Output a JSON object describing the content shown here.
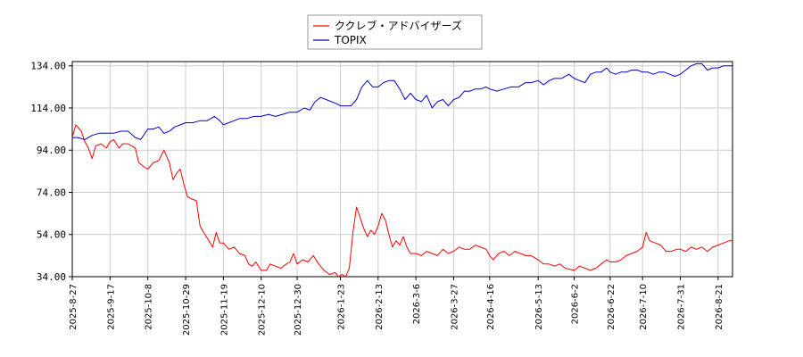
{
  "chart_data": {
    "type": "line",
    "title": "",
    "xlabel": "",
    "ylabel": "",
    "ylim": [
      34,
      136
    ],
    "yticks": [
      34.0,
      54.0,
      74.0,
      94.0,
      114.0,
      134.0
    ],
    "yticklabels": [
      "34.00",
      "54.00",
      "74.00",
      "94.00",
      "114.00",
      "134.00"
    ],
    "x_start": "2025-8-27",
    "x_end": "2026-8-29",
    "xticks": [
      "2025-8-27",
      "2025-9-17",
      "2025-10-8",
      "2025-10-29",
      "2025-11-19",
      "2025-12-10",
      "2025-12-30",
      "2026-1-23",
      "2026-2-13",
      "2026-3-6",
      "2026-3-27",
      "2026-4-16",
      "2026-5-13",
      "2026-6-2",
      "2026-6-22",
      "2026-7-10",
      "2026-7-31",
      "2026-8-21"
    ],
    "grid": true,
    "legend_position": "top-center",
    "series": [
      {
        "name": "ククレブ・アドバイザーズ",
        "color": "#ff0000",
        "points": [
          [
            "2025-8-27",
            100
          ],
          [
            "2025-8-29",
            106
          ],
          [
            "2025-9-1",
            103
          ],
          [
            "2025-9-3",
            98
          ],
          [
            "2025-9-5",
            95
          ],
          [
            "2025-9-7",
            90
          ],
          [
            "2025-9-9",
            96
          ],
          [
            "2025-9-12",
            97
          ],
          [
            "2025-9-15",
            95
          ],
          [
            "2025-9-17",
            98
          ],
          [
            "2025-9-19",
            99
          ],
          [
            "2025-9-22",
            95
          ],
          [
            "2025-9-24",
            97
          ],
          [
            "2025-9-27",
            97
          ],
          [
            "2025-10-1",
            95
          ],
          [
            "2025-10-3",
            88
          ],
          [
            "2025-10-6",
            86
          ],
          [
            "2025-10-8",
            85
          ],
          [
            "2025-10-11",
            88
          ],
          [
            "2025-10-14",
            89
          ],
          [
            "2025-10-17",
            94
          ],
          [
            "2025-10-20",
            88
          ],
          [
            "2025-10-22",
            80
          ],
          [
            "2025-10-24",
            83
          ],
          [
            "2025-10-26",
            85
          ],
          [
            "2025-10-28",
            78
          ],
          [
            "2025-10-30",
            72
          ],
          [
            "2025-11-1",
            71
          ],
          [
            "2025-11-4",
            70
          ],
          [
            "2025-11-6",
            58
          ],
          [
            "2025-11-8",
            55
          ],
          [
            "2025-11-11",
            51
          ],
          [
            "2025-11-13",
            48
          ],
          [
            "2025-11-15",
            55
          ],
          [
            "2025-11-17",
            50
          ],
          [
            "2025-11-19",
            50
          ],
          [
            "2025-11-22",
            47
          ],
          [
            "2025-11-25",
            48
          ],
          [
            "2025-11-28",
            45
          ],
          [
            "2025-12-1",
            44
          ],
          [
            "2025-12-3",
            40
          ],
          [
            "2025-12-5",
            39
          ],
          [
            "2025-12-7",
            41
          ],
          [
            "2025-12-10",
            37
          ],
          [
            "2025-12-13",
            37
          ],
          [
            "2025-12-15",
            40
          ],
          [
            "2025-12-18",
            39
          ],
          [
            "2025-12-21",
            38
          ],
          [
            "2025-12-24",
            40
          ],
          [
            "2025-12-26",
            41
          ],
          [
            "2025-12-28",
            45
          ],
          [
            "2025-12-30",
            40
          ],
          [
            "2026-1-2",
            42
          ],
          [
            "2026-1-5",
            41
          ],
          [
            "2026-1-8",
            44
          ],
          [
            "2026-1-11",
            40
          ],
          [
            "2026-1-14",
            37
          ],
          [
            "2026-1-17",
            35
          ],
          [
            "2026-1-20",
            36
          ],
          [
            "2026-1-22",
            34
          ],
          [
            "2026-1-24",
            35
          ],
          [
            "2026-1-26",
            34
          ],
          [
            "2026-1-28",
            38
          ],
          [
            "2026-1-30",
            55
          ],
          [
            "2026-2-1",
            67
          ],
          [
            "2026-2-3",
            62
          ],
          [
            "2026-2-5",
            57
          ],
          [
            "2026-2-7",
            53
          ],
          [
            "2026-2-9",
            56
          ],
          [
            "2026-2-11",
            54
          ],
          [
            "2026-2-13",
            58
          ],
          [
            "2026-2-15",
            64
          ],
          [
            "2026-2-17",
            61
          ],
          [
            "2026-2-19",
            54
          ],
          [
            "2026-2-21",
            48
          ],
          [
            "2026-2-23",
            51
          ],
          [
            "2026-2-25",
            49
          ],
          [
            "2026-2-27",
            53
          ],
          [
            "2026-3-1",
            48
          ],
          [
            "2026-3-3",
            45
          ],
          [
            "2026-3-6",
            45
          ],
          [
            "2026-3-9",
            44
          ],
          [
            "2026-3-12",
            46
          ],
          [
            "2026-3-15",
            45
          ],
          [
            "2026-3-18",
            44
          ],
          [
            "2026-3-21",
            47
          ],
          [
            "2026-3-24",
            45
          ],
          [
            "2026-3-27",
            46
          ],
          [
            "2026-3-30",
            48
          ],
          [
            "2026-4-2",
            47
          ],
          [
            "2026-4-5",
            47
          ],
          [
            "2026-4-8",
            49
          ],
          [
            "2026-4-11",
            48
          ],
          [
            "2026-4-14",
            47
          ],
          [
            "2026-4-16",
            44
          ],
          [
            "2026-4-18",
            42
          ],
          [
            "2026-4-21",
            45
          ],
          [
            "2026-4-24",
            46
          ],
          [
            "2026-4-27",
            44
          ],
          [
            "2026-4-30",
            46
          ],
          [
            "2026-5-3",
            45
          ],
          [
            "2026-5-6",
            44
          ],
          [
            "2026-5-9",
            44
          ],
          [
            "2026-5-13",
            42
          ],
          [
            "2026-5-16",
            40
          ],
          [
            "2026-5-19",
            40
          ],
          [
            "2026-5-22",
            39
          ],
          [
            "2026-5-25",
            40
          ],
          [
            "2026-5-28",
            38
          ],
          [
            "2026-6-2",
            37
          ],
          [
            "2026-6-5",
            39
          ],
          [
            "2026-6-8",
            38
          ],
          [
            "2026-6-11",
            37
          ],
          [
            "2026-6-14",
            38
          ],
          [
            "2026-6-17",
            40
          ],
          [
            "2026-6-20",
            42
          ],
          [
            "2026-6-22",
            41
          ],
          [
            "2026-6-25",
            41
          ],
          [
            "2026-6-28",
            42
          ],
          [
            "2026-7-1",
            44
          ],
          [
            "2026-7-4",
            45
          ],
          [
            "2026-7-7",
            46
          ],
          [
            "2026-7-10",
            48
          ],
          [
            "2026-7-12",
            55
          ],
          [
            "2026-7-14",
            51
          ],
          [
            "2026-7-17",
            50
          ],
          [
            "2026-7-20",
            49
          ],
          [
            "2026-7-23",
            46
          ],
          [
            "2026-7-26",
            46
          ],
          [
            "2026-7-29",
            47
          ],
          [
            "2026-7-31",
            47
          ],
          [
            "2026-8-3",
            46
          ],
          [
            "2026-8-6",
            48
          ],
          [
            "2026-8-9",
            47
          ],
          [
            "2026-8-12",
            48
          ],
          [
            "2026-8-15",
            46
          ],
          [
            "2026-8-18",
            48
          ],
          [
            "2026-8-21",
            49
          ],
          [
            "2026-8-24",
            50
          ],
          [
            "2026-8-27",
            51
          ],
          [
            "2026-8-29",
            51
          ]
        ]
      },
      {
        "name": "TOPIX",
        "color": "#0000cc",
        "points": [
          [
            "2025-8-27",
            100
          ],
          [
            "2025-8-30",
            100
          ],
          [
            "2025-9-3",
            99
          ],
          [
            "2025-9-7",
            101
          ],
          [
            "2025-9-11",
            102
          ],
          [
            "2025-9-15",
            102
          ],
          [
            "2025-9-19",
            102
          ],
          [
            "2025-9-23",
            103
          ],
          [
            "2025-9-27",
            103
          ],
          [
            "2025-10-1",
            100
          ],
          [
            "2025-10-4",
            99
          ],
          [
            "2025-10-8",
            104
          ],
          [
            "2025-10-11",
            104
          ],
          [
            "2025-10-14",
            105
          ],
          [
            "2025-10-17",
            102
          ],
          [
            "2025-10-20",
            103
          ],
          [
            "2025-10-23",
            105
          ],
          [
            "2025-10-26",
            106
          ],
          [
            "2025-10-29",
            107
          ],
          [
            "2025-11-2",
            107
          ],
          [
            "2025-11-6",
            108
          ],
          [
            "2025-11-10",
            108
          ],
          [
            "2025-11-14",
            110
          ],
          [
            "2025-11-17",
            108
          ],
          [
            "2025-11-19",
            106
          ],
          [
            "2025-11-22",
            107
          ],
          [
            "2025-11-25",
            108
          ],
          [
            "2025-11-28",
            109
          ],
          [
            "2025-12-2",
            109
          ],
          [
            "2025-12-6",
            110
          ],
          [
            "2025-12-10",
            110
          ],
          [
            "2025-12-14",
            111
          ],
          [
            "2025-12-18",
            110
          ],
          [
            "2025-12-22",
            111
          ],
          [
            "2025-12-26",
            112
          ],
          [
            "2025-12-30",
            112
          ],
          [
            "2026-1-3",
            114
          ],
          [
            "2026-1-6",
            113
          ],
          [
            "2026-1-9",
            117
          ],
          [
            "2026-1-12",
            119
          ],
          [
            "2026-1-15",
            118
          ],
          [
            "2026-1-18",
            117
          ],
          [
            "2026-1-21",
            116
          ],
          [
            "2026-1-23",
            115
          ],
          [
            "2026-1-26",
            115
          ],
          [
            "2026-1-29",
            115
          ],
          [
            "2026-2-1",
            118
          ],
          [
            "2026-2-4",
            124
          ],
          [
            "2026-2-7",
            127
          ],
          [
            "2026-2-10",
            124
          ],
          [
            "2026-2-13",
            124
          ],
          [
            "2026-2-16",
            126
          ],
          [
            "2026-2-19",
            127
          ],
          [
            "2026-2-22",
            127
          ],
          [
            "2026-2-25",
            123
          ],
          [
            "2026-2-28",
            118
          ],
          [
            "2026-3-3",
            121
          ],
          [
            "2026-3-6",
            118
          ],
          [
            "2026-3-9",
            117
          ],
          [
            "2026-3-12",
            120
          ],
          [
            "2026-3-15",
            114
          ],
          [
            "2026-3-18",
            117
          ],
          [
            "2026-3-21",
            118
          ],
          [
            "2026-3-24",
            115
          ],
          [
            "2026-3-27",
            118
          ],
          [
            "2026-3-30",
            119
          ],
          [
            "2026-4-2",
            122
          ],
          [
            "2026-4-5",
            122
          ],
          [
            "2026-4-8",
            123
          ],
          [
            "2026-4-11",
            123
          ],
          [
            "2026-4-14",
            124
          ],
          [
            "2026-4-16",
            123
          ],
          [
            "2026-4-20",
            122
          ],
          [
            "2026-4-24",
            123
          ],
          [
            "2026-4-28",
            124
          ],
          [
            "2026-5-2",
            124
          ],
          [
            "2026-5-6",
            126
          ],
          [
            "2026-5-9",
            126
          ],
          [
            "2026-5-13",
            127
          ],
          [
            "2026-5-16",
            125
          ],
          [
            "2026-5-19",
            127
          ],
          [
            "2026-5-22",
            128
          ],
          [
            "2026-5-26",
            128
          ],
          [
            "2026-5-30",
            130
          ],
          [
            "2026-6-2",
            128
          ],
          [
            "2026-6-5",
            127
          ],
          [
            "2026-6-8",
            126
          ],
          [
            "2026-6-11",
            130
          ],
          [
            "2026-6-14",
            131
          ],
          [
            "2026-6-17",
            131
          ],
          [
            "2026-6-20",
            133
          ],
          [
            "2026-6-22",
            131
          ],
          [
            "2026-6-25",
            130
          ],
          [
            "2026-6-28",
            131
          ],
          [
            "2026-7-1",
            131
          ],
          [
            "2026-7-4",
            132
          ],
          [
            "2026-7-7",
            132
          ],
          [
            "2026-7-10",
            131
          ],
          [
            "2026-7-13",
            131
          ],
          [
            "2026-7-16",
            130
          ],
          [
            "2026-7-19",
            131
          ],
          [
            "2026-7-22",
            131
          ],
          [
            "2026-7-25",
            130
          ],
          [
            "2026-7-28",
            129
          ],
          [
            "2026-7-31",
            130
          ],
          [
            "2026-8-3",
            132
          ],
          [
            "2026-8-6",
            134
          ],
          [
            "2026-8-9",
            135
          ],
          [
            "2026-8-12",
            135
          ],
          [
            "2026-8-15",
            132
          ],
          [
            "2026-8-18",
            133
          ],
          [
            "2026-8-21",
            133
          ],
          [
            "2026-8-24",
            134
          ],
          [
            "2026-8-27",
            134
          ],
          [
            "2026-8-29",
            134
          ]
        ]
      }
    ]
  }
}
